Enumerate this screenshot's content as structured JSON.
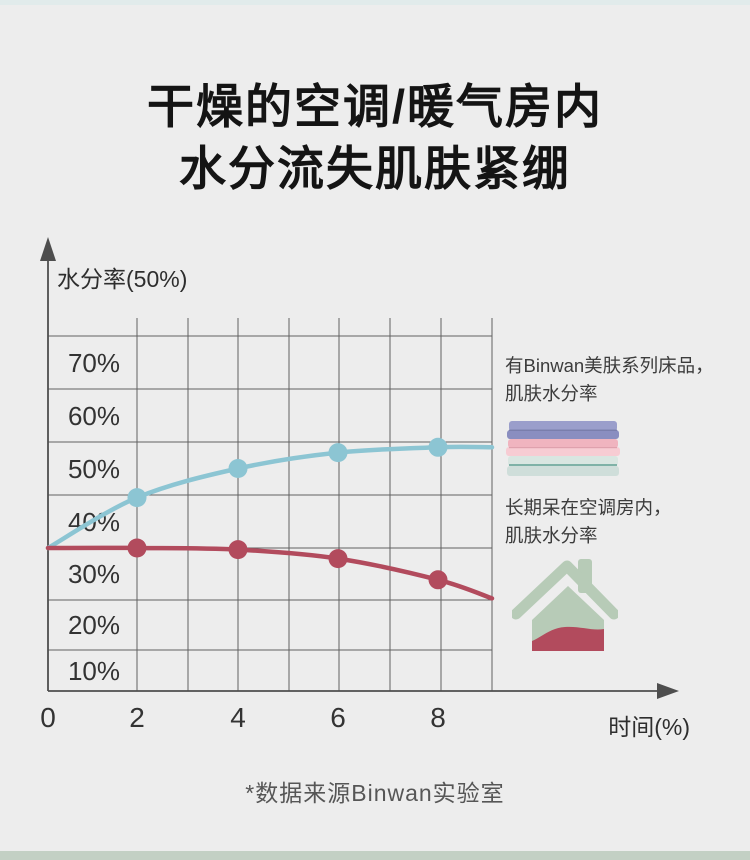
{
  "page": {
    "title_line1": "干燥的空调/暖气房内",
    "title_line2": "水分流失肌肤紧绷",
    "footnote": "*数据来源Binwan实验室"
  },
  "colors": {
    "accent_blue": "#8cc5d3",
    "accent_red": "#b24b5d",
    "house_green": "#b7cbb7",
    "top_bar": "#e1ebeb",
    "bottom_bar": "#c3d0c4"
  },
  "chart_data": {
    "type": "line",
    "ylabel": "水分率(50%)",
    "xlabel": "时间(%)",
    "x": [
      0,
      2,
      4,
      6,
      8,
      9
    ],
    "series": [
      {
        "name": "有Binwan美肤系列床品，肌肤水分率",
        "color": "#8cc5d3",
        "values": [
          35,
          44.5,
          50,
          53,
          54,
          54
        ]
      },
      {
        "name": "长期呆在空调房内，肌肤水分率",
        "color": "#b24b5d",
        "values": [
          35,
          35,
          34.7,
          33,
          29,
          25.5
        ]
      }
    ],
    "y_ticks": [
      "70%",
      "60%",
      "50%",
      "40%",
      "30%",
      "20%",
      "10%"
    ],
    "x_ticks": [
      "0",
      "2",
      "4",
      "6",
      "8"
    ],
    "ylim": [
      5,
      75
    ],
    "grid": true,
    "legend_position": "right",
    "marker_x": [
      2,
      4,
      6,
      8
    ]
  },
  "legend": {
    "items": [
      {
        "icon": "towel-stack-icon",
        "line1": "有Binwan美肤系列床品，",
        "line2": "肌肤水分率"
      },
      {
        "icon": "house-humidity-icon",
        "line1": "长期呆在空调房内，",
        "line2": "肌肤水分率"
      }
    ]
  }
}
